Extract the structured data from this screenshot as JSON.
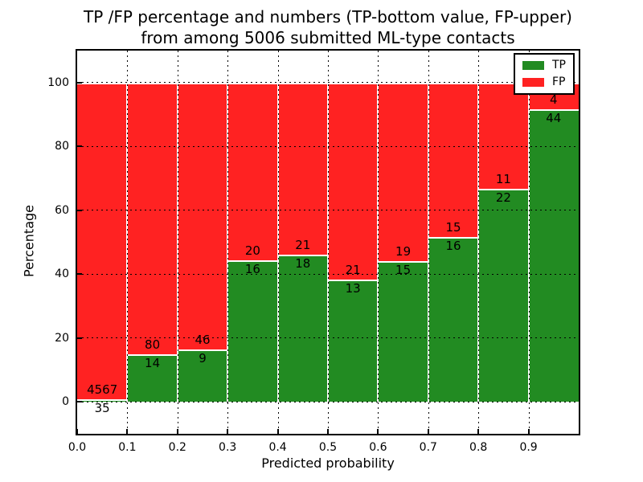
{
  "title": {
    "line1": "TP /FP percentage and numbers (TP-bottom value, FP-upper)",
    "line2": "from among 5006 submitted ML-type contacts"
  },
  "chart_data": {
    "type": "bar",
    "stacked": true,
    "normalized_to_100_percent": true,
    "title_line1": "TP /FP percentage and numbers (TP-bottom value, FP-upper)",
    "title_line2": "from among 5006 submitted ML-type contacts",
    "xlabel": "Predicted probability",
    "ylabel": "Percentage",
    "bin_edges": [
      0.0,
      0.1,
      0.2,
      0.3,
      0.4,
      0.5,
      0.6,
      0.7,
      0.8,
      0.9,
      1.0
    ],
    "series": [
      {
        "name": "TP",
        "color": "#228B22",
        "counts": [
          35,
          14,
          9,
          16,
          18,
          13,
          15,
          16,
          22,
          44
        ]
      },
      {
        "name": "FP",
        "color": "#FF2222",
        "counts": [
          4567,
          80,
          46,
          20,
          21,
          21,
          19,
          15,
          11,
          4
        ]
      }
    ],
    "bar_value_labels_note": "TP count printed just below segment boundary, FP count just above it",
    "x_tick_labels": [
      "0.0",
      "0.1",
      "0.2",
      "0.3",
      "0.4",
      "0.5",
      "0.6",
      "0.7",
      "0.8",
      "0.9"
    ],
    "x_tick_values": [
      0.0,
      0.1,
      0.2,
      0.3,
      0.4,
      0.5,
      0.6,
      0.7,
      0.8,
      0.9
    ],
    "y_tick_values": [
      0,
      20,
      40,
      60,
      80,
      100
    ],
    "xlim": [
      0.0,
      1.0
    ],
    "ylim": [
      -10,
      110
    ],
    "grid": true,
    "grid_style": "dotted",
    "legend": {
      "position": "upper right",
      "entries": [
        "TP",
        "FP"
      ]
    }
  }
}
